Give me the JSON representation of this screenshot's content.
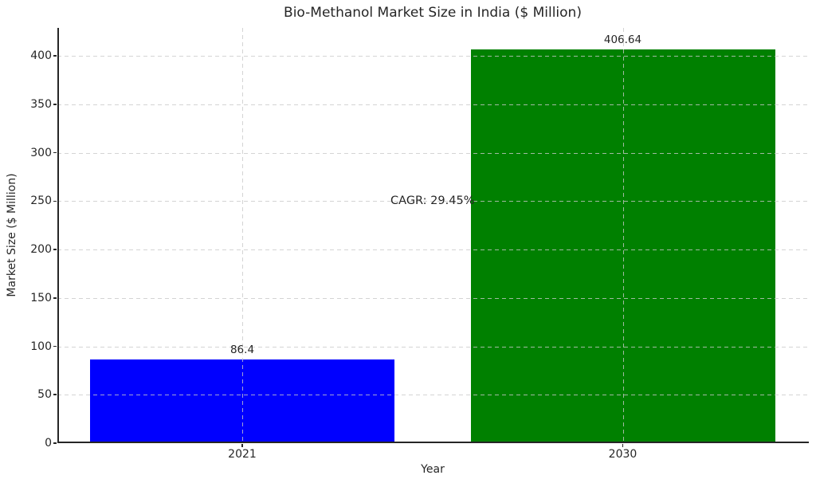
{
  "chart_data": {
    "type": "bar",
    "title": "Bio-Methanol Market Size in India ($ Million)",
    "xlabel": "Year",
    "ylabel": "Market Size ($ Million)",
    "categories": [
      "2021",
      "2030"
    ],
    "values": [
      86.4,
      406.64
    ],
    "bar_colors": [
      "#0000ff",
      "#008000"
    ],
    "bar_value_labels": [
      "86.4",
      "406.64"
    ],
    "annotation": {
      "text": "CAGR: 29.45%",
      "x": 0.5,
      "y": 250
    },
    "yticks": [
      0,
      50,
      100,
      150,
      200,
      250,
      300,
      350,
      400
    ],
    "ylim": [
      0,
      429
    ],
    "grid": true,
    "grid_linestyle": "dashed",
    "legend_position": "none",
    "spines_hidden": [
      "top",
      "right"
    ]
  },
  "colors": {
    "text": "#262626",
    "spine": "#262626",
    "grid": "#c9c9c9",
    "background": "#ffffff",
    "bar_2021": "#0000ff",
    "bar_2030": "#008000"
  }
}
